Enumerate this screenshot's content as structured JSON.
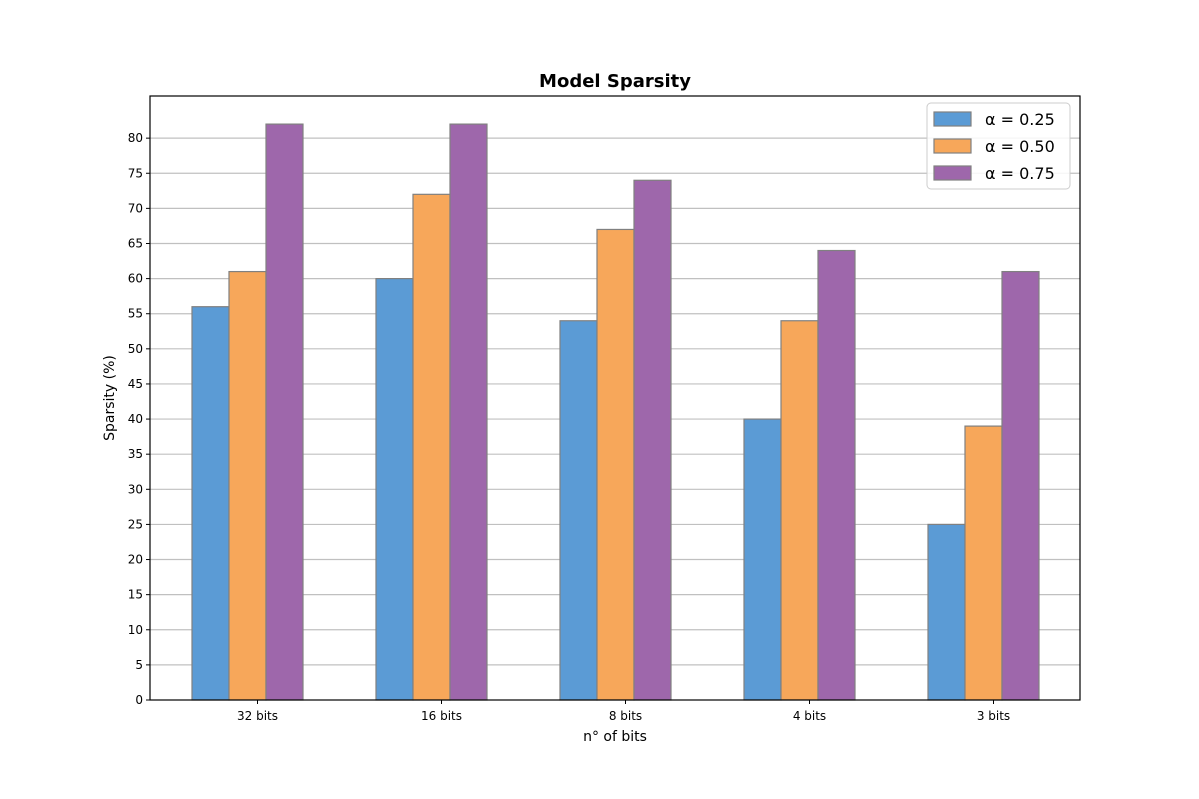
{
  "chart_data": {
    "type": "bar",
    "title": "Model Sparsity",
    "xlabel": "n° of bits",
    "ylabel": "Sparsity (%)",
    "categories": [
      "32 bits",
      "16 bits",
      "8 bits",
      "4 bits",
      "3 bits"
    ],
    "series": [
      {
        "name": "α = 0.25",
        "color": "#5b9bd5",
        "values": [
          56,
          60,
          54,
          40,
          25
        ]
      },
      {
        "name": "α = 0.50",
        "color": "#f7a75a",
        "values": [
          61,
          72,
          67,
          54,
          39
        ]
      },
      {
        "name": "α = 0.75",
        "color": "#9e67ab",
        "values": [
          82,
          82,
          74,
          64,
          61
        ]
      }
    ],
    "ylim": [
      0,
      86
    ],
    "yticks": [
      0,
      5,
      10,
      15,
      20,
      25,
      30,
      35,
      40,
      45,
      50,
      55,
      60,
      65,
      70,
      75,
      80
    ],
    "grid": "y",
    "legend_position": "top-right",
    "bar_edge_color": "#808080"
  }
}
